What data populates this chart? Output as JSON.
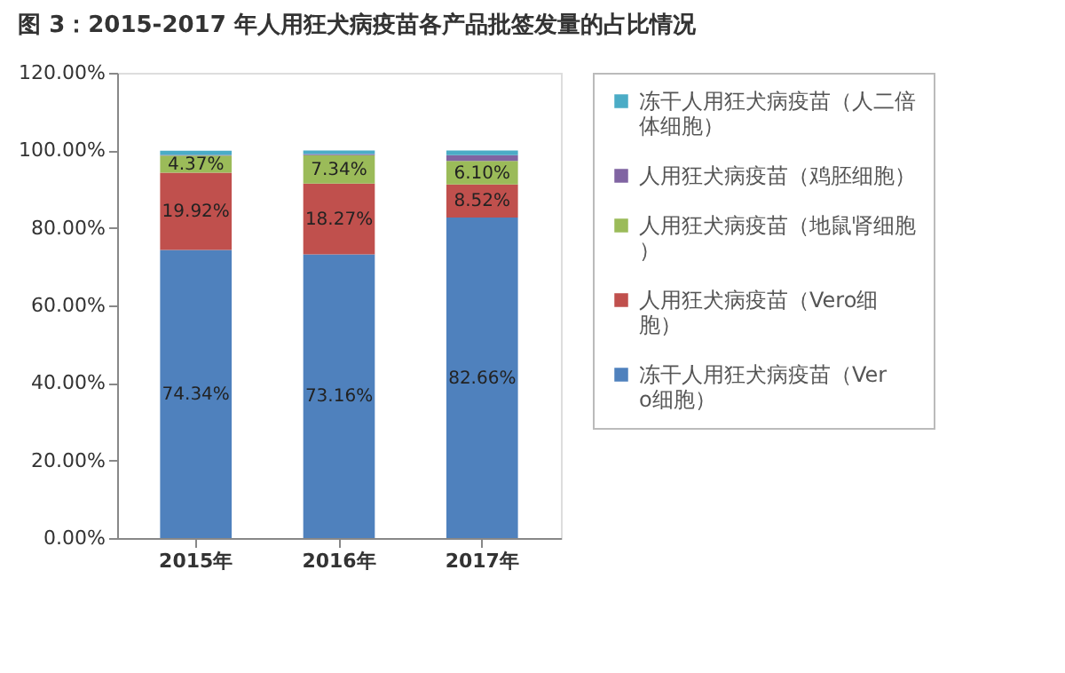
{
  "chart_data": {
    "type": "bar",
    "stacked": true,
    "title": "图 3：2015-2017 年人用狂犬病疫苗各产品批签发量的占比情况",
    "categories": [
      "2015年",
      "2016年",
      "2017年"
    ],
    "series": [
      {
        "name": "冻干人用狂犬病疫苗（Vero细胞）",
        "color": "#4f81bd",
        "values": [
          74.34,
          73.16,
          82.66
        ],
        "value_labels": [
          "74.34%",
          "73.16%",
          "82.66%"
        ]
      },
      {
        "name": "人用狂犬病疫苗（Vero细胞）",
        "color": "#c0504d",
        "values": [
          19.92,
          18.27,
          8.52
        ],
        "value_labels": [
          "19.92%",
          "18.27%",
          "8.52%"
        ]
      },
      {
        "name": "人用狂犬病疫苗（地鼠肾细胞）",
        "color": "#9bbb59",
        "values": [
          4.37,
          7.34,
          6.1
        ],
        "value_labels": [
          "4.37%",
          "7.34%",
          "6.10%"
        ]
      },
      {
        "name": "人用狂犬病疫苗（鸡胚细胞）",
        "color": "#8064a2",
        "values": [
          0.2,
          0.3,
          1.5
        ]
      },
      {
        "name": "冻干人用狂犬病疫苗（人二倍体细胞）",
        "color": "#4bacc6",
        "values": [
          1.1,
          0.9,
          1.2
        ]
      }
    ],
    "ylim": [
      0,
      120
    ],
    "yticks": [
      {
        "value": 0,
        "label": "0.00%"
      },
      {
        "value": 20,
        "label": "20.00%"
      },
      {
        "value": 40,
        "label": "40.00%"
      },
      {
        "value": 60,
        "label": "60.00%"
      },
      {
        "value": 80,
        "label": "80.00%"
      },
      {
        "value": 100,
        "label": "100.00%"
      },
      {
        "value": 120,
        "label": "120.00%"
      }
    ],
    "legend": "right",
    "grid": false
  }
}
